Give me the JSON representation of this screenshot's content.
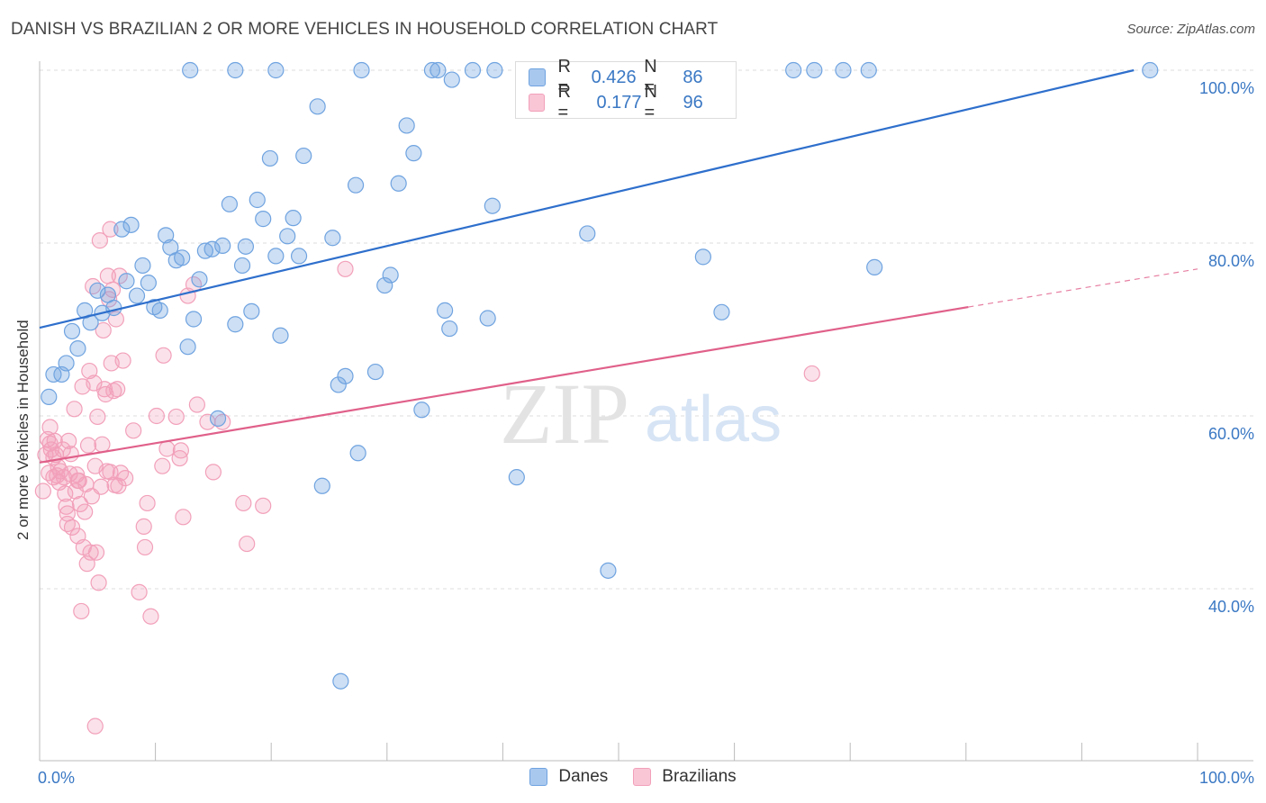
{
  "title": "DANISH VS BRAZILIAN 2 OR MORE VEHICLES IN HOUSEHOLD CORRELATION CHART",
  "source": "Source: ZipAtlas.com",
  "watermark": {
    "zip": "ZIP",
    "atlas": "atlas"
  },
  "legend": {
    "danes": {
      "r_label": "R =",
      "r_value": "0.426",
      "n_label": "N =",
      "n_value": "86"
    },
    "brazilians": {
      "r_label": "R =",
      "r_value": "0.177",
      "n_label": "N =",
      "n_value": "96"
    }
  },
  "bottom_legend": {
    "danes": "Danes",
    "brazilians": "Brazilians"
  },
  "colors": {
    "danes": "#6fa3e0",
    "brazilians": "#f2a0ba",
    "danes_line": "#2e6fcc",
    "brazilians_line": "#e0608a",
    "tick_label": "#3a78c4"
  },
  "chart_data": {
    "type": "scatter",
    "title": "DANISH VS BRAZILIAN 2 OR MORE VEHICLES IN HOUSEHOLD CORRELATION CHART",
    "xlabel": "",
    "ylabel": "2 or more Vehicles in Household",
    "xlim": [
      0,
      100
    ],
    "ylim": [
      20,
      102
    ],
    "x_tick_labels": [
      "0.0%",
      "100.0%"
    ],
    "y_ticks": [
      40,
      60,
      80,
      100
    ],
    "y_tick_labels": [
      "40.0%",
      "60.0%",
      "80.0%",
      "100.0%"
    ],
    "grid": "horizontal dashed",
    "legend_position": "top-center",
    "series": [
      {
        "name": "Danes",
        "trend": {
          "x": [
            0,
            94.5
          ],
          "y": [
            70.2,
            100
          ]
        },
        "points": [
          [
            0.8,
            62.2
          ],
          [
            1.2,
            64.8
          ],
          [
            1.9,
            64.8
          ],
          [
            2.3,
            66.1
          ],
          [
            2.8,
            69.8
          ],
          [
            3.3,
            67.8
          ],
          [
            3.9,
            72.2
          ],
          [
            4.4,
            70.8
          ],
          [
            5.0,
            74.5
          ],
          [
            5.4,
            71.9
          ],
          [
            5.9,
            74.0
          ],
          [
            6.4,
            72.5
          ],
          [
            7.1,
            81.6
          ],
          [
            7.5,
            75.6
          ],
          [
            7.9,
            82.1
          ],
          [
            8.4,
            73.9
          ],
          [
            8.9,
            77.4
          ],
          [
            9.4,
            75.4
          ],
          [
            9.9,
            72.6
          ],
          [
            10.4,
            72.2
          ],
          [
            10.9,
            80.9
          ],
          [
            11.3,
            79.5
          ],
          [
            11.8,
            78.0
          ],
          [
            12.3,
            78.3
          ],
          [
            12.8,
            68.0
          ],
          [
            13.3,
            71.2
          ],
          [
            13.8,
            75.8
          ],
          [
            14.3,
            79.1
          ],
          [
            14.9,
            79.3
          ],
          [
            15.4,
            59.7
          ],
          [
            15.8,
            79.7
          ],
          [
            16.4,
            84.5
          ],
          [
            16.9,
            70.6
          ],
          [
            17.5,
            77.4
          ],
          [
            17.8,
            79.6
          ],
          [
            18.3,
            72.1
          ],
          [
            18.8,
            85.0
          ],
          [
            19.3,
            82.8
          ],
          [
            19.9,
            89.8
          ],
          [
            20.4,
            78.5
          ],
          [
            20.8,
            69.3
          ],
          [
            21.4,
            80.8
          ],
          [
            21.9,
            82.9
          ],
          [
            22.4,
            78.5
          ],
          [
            22.8,
            90.1
          ],
          [
            24.0,
            95.8
          ],
          [
            24.4,
            51.9
          ],
          [
            25.3,
            80.6
          ],
          [
            25.8,
            63.6
          ],
          [
            26.4,
            64.6
          ],
          [
            27.3,
            86.7
          ],
          [
            27.8,
            100
          ],
          [
            27.5,
            55.7
          ],
          [
            29.0,
            65.1
          ],
          [
            29.8,
            75.1
          ],
          [
            30.3,
            76.3
          ],
          [
            31.0,
            86.9
          ],
          [
            31.7,
            93.6
          ],
          [
            32.3,
            90.4
          ],
          [
            33.0,
            60.7
          ],
          [
            33.9,
            100
          ],
          [
            34.4,
            100
          ],
          [
            35.0,
            72.2
          ],
          [
            35.4,
            70.1
          ],
          [
            35.6,
            98.9
          ],
          [
            37.4,
            100
          ],
          [
            38.7,
            71.3
          ],
          [
            39.1,
            84.3
          ],
          [
            39.3,
            100
          ],
          [
            41.2,
            52.9
          ],
          [
            47.3,
            81.1
          ],
          [
            49.1,
            42.1
          ],
          [
            54.9,
            100
          ],
          [
            57.3,
            78.4
          ],
          [
            58.6,
            100
          ],
          [
            58.9,
            72.0
          ],
          [
            65.1,
            100
          ],
          [
            66.9,
            100
          ],
          [
            69.4,
            100
          ],
          [
            71.6,
            100
          ],
          [
            72.1,
            77.2
          ],
          [
            95.9,
            100
          ],
          [
            26.0,
            29.3
          ],
          [
            16.9,
            100
          ],
          [
            13.0,
            100
          ],
          [
            20.4,
            100
          ]
        ]
      },
      {
        "name": "Brazilians",
        "trend": {
          "x": [
            0,
            80.2
          ],
          "y": [
            54.6,
            72.6
          ],
          "dashed_to": [
            100,
            77.0
          ]
        },
        "points": [
          [
            0.3,
            51.3
          ],
          [
            0.5,
            55.5
          ],
          [
            0.7,
            57.3
          ],
          [
            0.8,
            53.4
          ],
          [
            0.9,
            58.7
          ],
          [
            1.0,
            56.1
          ],
          [
            1.2,
            55.2
          ],
          [
            1.3,
            57.1
          ],
          [
            1.5,
            53.1
          ],
          [
            1.6,
            54.1
          ],
          [
            1.7,
            52.3
          ],
          [
            1.8,
            53.6
          ],
          [
            2.0,
            56.1
          ],
          [
            2.1,
            52.9
          ],
          [
            2.2,
            51.0
          ],
          [
            2.3,
            49.5
          ],
          [
            2.4,
            48.7
          ],
          [
            2.5,
            57.1
          ],
          [
            2.6,
            53.3
          ],
          [
            2.7,
            55.6
          ],
          [
            2.8,
            47.1
          ],
          [
            3.0,
            60.8
          ],
          [
            3.1,
            51.3
          ],
          [
            3.2,
            53.2
          ],
          [
            3.3,
            46.1
          ],
          [
            3.4,
            52.5
          ],
          [
            3.5,
            49.8
          ],
          [
            3.6,
            37.4
          ],
          [
            3.7,
            63.4
          ],
          [
            3.8,
            44.8
          ],
          [
            3.9,
            48.9
          ],
          [
            4.0,
            52.1
          ],
          [
            4.1,
            42.9
          ],
          [
            4.2,
            56.6
          ],
          [
            4.3,
            65.2
          ],
          [
            4.4,
            44.2
          ],
          [
            4.5,
            50.7
          ],
          [
            4.6,
            75.0
          ],
          [
            4.7,
            63.8
          ],
          [
            4.8,
            54.2
          ],
          [
            4.9,
            44.2
          ],
          [
            5.0,
            59.9
          ],
          [
            5.1,
            40.7
          ],
          [
            5.2,
            80.3
          ],
          [
            5.3,
            51.8
          ],
          [
            5.4,
            56.7
          ],
          [
            5.5,
            69.9
          ],
          [
            5.6,
            63.1
          ],
          [
            5.7,
            62.5
          ],
          [
            5.8,
            53.6
          ],
          [
            5.9,
            76.2
          ],
          [
            6.0,
            73.5
          ],
          [
            6.1,
            81.6
          ],
          [
            6.2,
            66.1
          ],
          [
            6.3,
            74.6
          ],
          [
            6.4,
            62.9
          ],
          [
            6.5,
            52.0
          ],
          [
            6.6,
            71.2
          ],
          [
            6.7,
            63.1
          ],
          [
            6.8,
            51.9
          ],
          [
            6.9,
            76.2
          ],
          [
            7.0,
            53.4
          ],
          [
            7.2,
            66.4
          ],
          [
            7.4,
            52.8
          ],
          [
            8.1,
            58.3
          ],
          [
            8.6,
            39.6
          ],
          [
            9.0,
            47.2
          ],
          [
            9.1,
            44.8
          ],
          [
            9.3,
            49.9
          ],
          [
            9.6,
            36.8
          ],
          [
            10.1,
            60.0
          ],
          [
            10.6,
            54.2
          ],
          [
            10.7,
            67.0
          ],
          [
            11.0,
            56.2
          ],
          [
            11.8,
            59.9
          ],
          [
            12.1,
            55.1
          ],
          [
            12.2,
            56.0
          ],
          [
            12.4,
            48.3
          ],
          [
            12.8,
            73.9
          ],
          [
            13.3,
            75.2
          ],
          [
            13.6,
            61.3
          ],
          [
            14.5,
            59.3
          ],
          [
            15.0,
            53.5
          ],
          [
            15.8,
            59.3
          ],
          [
            17.6,
            49.9
          ],
          [
            17.9,
            45.2
          ],
          [
            19.3,
            49.6
          ],
          [
            26.4,
            77.0
          ],
          [
            66.7,
            64.9
          ],
          [
            4.8,
            24.1
          ],
          [
            2.4,
            47.5
          ],
          [
            6.1,
            53.5
          ],
          [
            1.4,
            55.5
          ],
          [
            3.3,
            52.5
          ],
          [
            1.2,
            52.9
          ],
          [
            0.9,
            56.8
          ]
        ]
      }
    ]
  }
}
